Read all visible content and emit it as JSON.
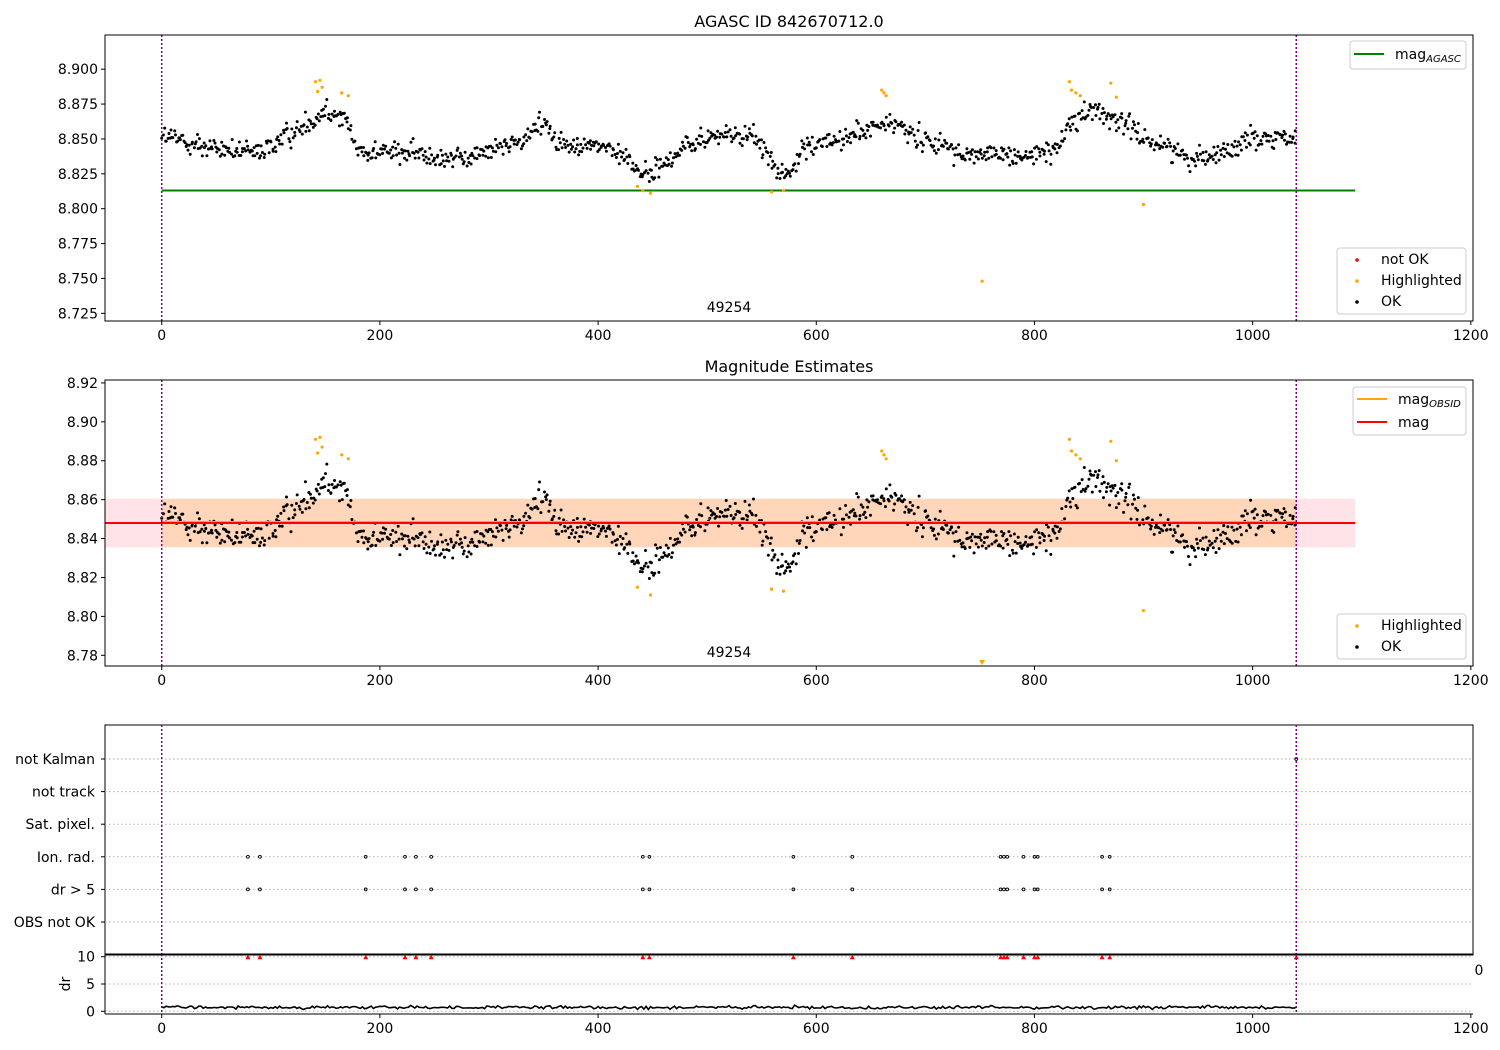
{
  "chart_data": [
    {
      "id": "top",
      "type": "scatter",
      "title": "AGASC ID 842670712.0",
      "xlim": [
        -52,
        1202
      ],
      "ylim": [
        8.7195,
        8.9245
      ],
      "xticks": [
        0,
        200,
        400,
        600,
        800,
        1000,
        1200
      ],
      "yticks": [
        8.725,
        8.75,
        8.775,
        8.8,
        8.825,
        8.85,
        8.875,
        8.9
      ],
      "ytick_decimals": 3,
      "obsid_label": "49254",
      "obsid_label_x": 520,
      "vlines": [
        0,
        1040
      ],
      "hlines": [
        {
          "name": "mag",
          "subscript": "AGASC",
          "y": 8.813,
          "x_range": [
            0,
            1094
          ],
          "color": "#008000"
        }
      ],
      "legend_lines": [
        {
          "name": "mag",
          "subscript": "AGASC",
          "color": "#008000"
        }
      ],
      "legend_lines_position": "upper right",
      "legend_points": [
        {
          "name": "not OK",
          "color": "#ff0000"
        },
        {
          "name": "Highlighted",
          "color": "#ffa500"
        },
        {
          "name": "OK",
          "color": "#000000"
        }
      ],
      "legend_points_position": "lower right",
      "highlighted": [
        [
          141,
          8.891
        ],
        [
          145,
          8.892
        ],
        [
          147,
          8.887
        ],
        [
          143,
          8.884
        ],
        [
          165,
          8.883
        ],
        [
          171,
          8.881
        ],
        [
          436,
          8.816
        ],
        [
          441,
          8.813
        ],
        [
          448,
          8.811
        ],
        [
          559,
          8.812
        ],
        [
          570,
          8.813
        ],
        [
          660,
          8.885
        ],
        [
          662,
          8.883
        ],
        [
          664,
          8.881
        ],
        [
          832,
          8.891
        ],
        [
          834,
          8.885
        ],
        [
          838,
          8.883
        ],
        [
          842,
          8.881
        ],
        [
          870,
          8.89
        ],
        [
          875,
          8.88
        ],
        [
          900,
          8.803
        ],
        [
          752,
          8.748
        ]
      ],
      "not_ok": []
    },
    {
      "id": "middle",
      "type": "scatter",
      "title": "Magnitude Estimates",
      "xlim": [
        -52,
        1202
      ],
      "ylim": [
        8.7745,
        8.9215
      ],
      "xticks": [
        0,
        200,
        400,
        600,
        800,
        1000,
        1200
      ],
      "yticks": [
        8.78,
        8.8,
        8.82,
        8.84,
        8.86,
        8.88,
        8.9,
        8.92
      ],
      "ytick_decimals": 2,
      "obsid_label": "49254",
      "obsid_label_x": 520,
      "vlines": [
        0,
        1040
      ],
      "hlines": [
        {
          "name": "mag",
          "subscript": "OBSID",
          "y": 8.8485,
          "x_range": [
            0,
            1040
          ],
          "color": "#ffa500"
        },
        {
          "name": "mag",
          "subscript": "",
          "y": 8.848,
          "x_range": [
            -52,
            1094
          ],
          "color": "#ff0000"
        }
      ],
      "bands": [
        {
          "y0": 8.8355,
          "y1": 8.8605,
          "x_range": [
            -52,
            1094
          ],
          "color": "#ffc0cb",
          "opacity": 0.45
        },
        {
          "y0": 8.8355,
          "y1": 8.8605,
          "x_range": [
            0,
            1040
          ],
          "color": "#ffa500",
          "opacity": 0.2
        }
      ],
      "legend_lines": [
        {
          "name": "mag",
          "subscript": "OBSID",
          "color": "#ffa500"
        },
        {
          "name": "mag",
          "subscript": "",
          "color": "#ff0000"
        }
      ],
      "legend_lines_position": "upper right",
      "legend_points": [
        {
          "name": "Highlighted",
          "color": "#ffa500"
        },
        {
          "name": "OK",
          "color": "#000000"
        }
      ],
      "legend_points_position": "lower right",
      "highlighted": [
        [
          141,
          8.891
        ],
        [
          145,
          8.892
        ],
        [
          147,
          8.887
        ],
        [
          143,
          8.884
        ],
        [
          165,
          8.883
        ],
        [
          171,
          8.881
        ],
        [
          436,
          8.815
        ],
        [
          448,
          8.811
        ],
        [
          559,
          8.814
        ],
        [
          570,
          8.813
        ],
        [
          660,
          8.885
        ],
        [
          662,
          8.883
        ],
        [
          664,
          8.881
        ],
        [
          832,
          8.891
        ],
        [
          834,
          8.885
        ],
        [
          838,
          8.883
        ],
        [
          842,
          8.881
        ],
        [
          870,
          8.89
        ],
        [
          875,
          8.88
        ],
        [
          900,
          8.803
        ]
      ],
      "clipped_marker": {
        "x": 752,
        "y": 8.775
      }
    },
    {
      "id": "flags",
      "type": "scatter",
      "xlim": [
        -52,
        1202
      ],
      "categories": [
        "not Kalman",
        "not track",
        "Sat. pixel.",
        "Ion. rad.",
        "dr > 5",
        "OBS not OK"
      ],
      "vlines": [
        0,
        1040
      ],
      "flag_x": [
        79,
        90,
        187,
        223,
        233,
        247,
        441,
        447,
        579,
        633,
        769,
        772,
        775,
        790,
        800,
        803,
        862,
        869
      ],
      "flag_rows": [
        "Ion. rad.",
        "dr > 5"
      ],
      "not_kalman_x": [
        1040
      ]
    },
    {
      "id": "dr",
      "type": "line",
      "ylabel": "dr",
      "xlim": [
        -52,
        1202
      ],
      "ylim": [
        -0.5,
        10.5
      ],
      "xticks": [
        0,
        200,
        400,
        600,
        800,
        1000,
        1200
      ],
      "yticks": [
        0,
        5,
        10
      ],
      "threshold": 10,
      "clip_label": "0",
      "triangle_x": [
        79,
        90,
        187,
        223,
        233,
        247,
        441,
        447,
        579,
        633,
        769,
        772,
        775,
        790,
        800,
        803,
        862,
        869,
        1040
      ]
    }
  ]
}
